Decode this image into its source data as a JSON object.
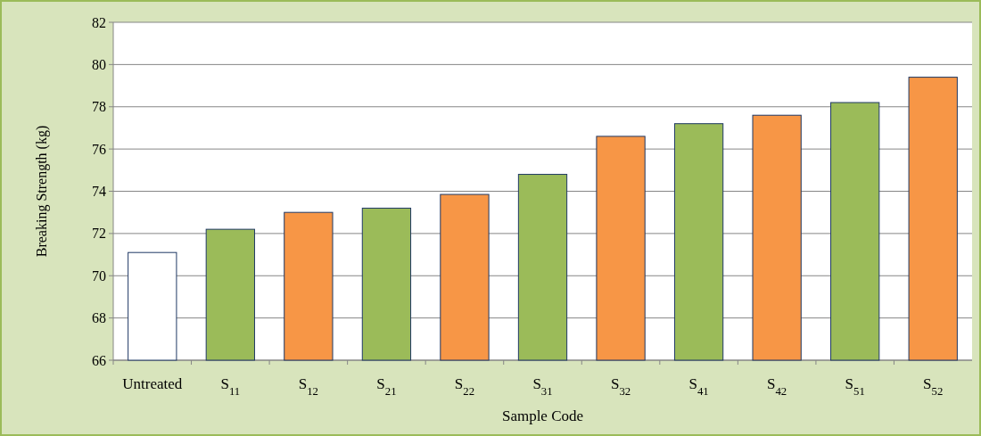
{
  "chart_data": {
    "type": "bar",
    "xlabel": "Sample Code",
    "ylabel": "Breaking Strength (kg)",
    "categories": [
      "Untreated",
      "S$_{11}$",
      "S$_{12}$",
      "S$_{21}$",
      "S$_{22}$",
      "S$_{31}$",
      "S$_{32}$",
      "S$_{41}$",
      "S$_{42}$",
      "S$_{51}$",
      "S$_{52}$"
    ],
    "values": [
      71.1,
      72.2,
      73.0,
      73.2,
      73.85,
      74.8,
      76.6,
      77.2,
      77.6,
      78.2,
      79.4
    ],
    "colors": [
      "#ffffff",
      "#9bbb59",
      "#f79646",
      "#9bbb59",
      "#f79646",
      "#9bbb59",
      "#f79646",
      "#9bbb59",
      "#f79646",
      "#9bbb59",
      "#f79646"
    ],
    "ylim": [
      66,
      82
    ],
    "yticks": [
      66,
      68,
      70,
      72,
      74,
      76,
      78,
      80,
      82
    ],
    "grid": "y"
  }
}
